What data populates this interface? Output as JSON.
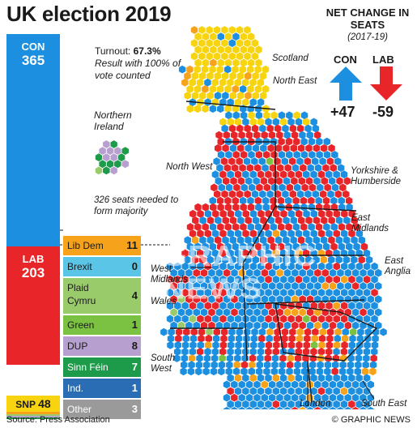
{
  "title": "UK election 2019",
  "colors": {
    "con": "#1d8fe0",
    "lab": "#e8262a",
    "snp": "#f7d40f",
    "libdem": "#f7a21b",
    "brexit": "#5bc5e8",
    "plaid": "#9acb6b",
    "green": "#7cc242",
    "dup": "#b7a0cf",
    "sinnfein": "#1d9a4a",
    "ind": "#2b6db4",
    "other": "#9a9a9a"
  },
  "seat_bar": {
    "con": {
      "party": "CON",
      "seats": "365"
    },
    "lab": {
      "party": "LAB",
      "seats": "203"
    },
    "snp": {
      "party": "SNP",
      "seats": "48"
    }
  },
  "turnout": {
    "label": "Turnout:",
    "value": "67.3%",
    "note": "Result with 100% of vote counted"
  },
  "northern_ireland": {
    "label": "Northern Ireland"
  },
  "seats_needed": "326 seats needed to form majority",
  "net_change": {
    "title": "NET CHANGE IN SEATS",
    "period": "(2017-19)",
    "con": {
      "party": "CON",
      "value": "+47"
    },
    "lab": {
      "party": "LAB",
      "value": "-59"
    }
  },
  "others": [
    {
      "party": "Lib Dem",
      "seats": "11",
      "color": "#f7a21b",
      "text": "#1a1a1a"
    },
    {
      "party": "Brexit",
      "seats": "0",
      "color": "#5bc5e8",
      "text": "#1a1a1a"
    },
    {
      "party": "Plaid Cymru",
      "seats": "4",
      "color": "#9acb6b",
      "text": "#1a1a1a"
    },
    {
      "party": "Green",
      "seats": "1",
      "color": "#7cc242",
      "text": "#1a1a1a"
    },
    {
      "party": "DUP",
      "seats": "8",
      "color": "#b7a0cf",
      "text": "#1a1a1a"
    },
    {
      "party": "Sinn Féin",
      "seats": "7",
      "color": "#1d9a4a",
      "text": "#ffffff"
    },
    {
      "party": "Ind.",
      "seats": "1",
      "color": "#2b6db4",
      "text": "#ffffff"
    },
    {
      "party": "Other",
      "seats": "3",
      "color": "#9a9a9a",
      "text": "#ffffff"
    }
  ],
  "regions": {
    "scotland": "Scotland",
    "north_east": "North East",
    "north_west": "North West",
    "yorkshire": "Yorkshire & Humberside",
    "east_midlands": "East Midlands",
    "east_anglia": "East Anglia",
    "west_midlands": "West Midlands",
    "wales": "Wales",
    "south_west": "South West",
    "london": "London",
    "south_east": "South East"
  },
  "watermark": "GRAPHIC NEWS",
  "source": "Source: Press Association",
  "credit": "© GRAPHIC NEWS"
}
